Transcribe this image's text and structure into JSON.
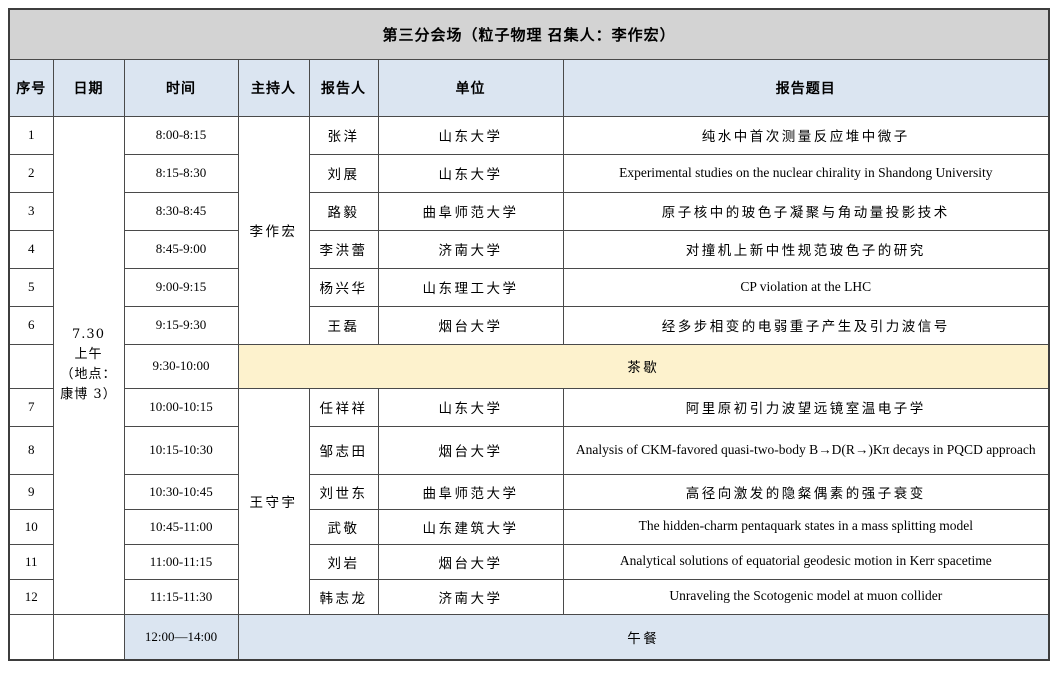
{
  "header": {
    "title": "第三分会场（粒子物理 召集人：李作宏）"
  },
  "columns": [
    "序号",
    "日期",
    "时间",
    "主持人",
    "报告人",
    "单位",
    "报告题目"
  ],
  "date_cell": {
    "lines": [
      "7.30",
      "上午",
      "（地点：康博 3）"
    ]
  },
  "session1": {
    "chair": "李作宏",
    "rows": [
      {
        "no": "1",
        "time": "8:00-8:15",
        "speaker": "张洋",
        "affiliation": "山东大学",
        "title": "纯水中首次测量反应堆中微子"
      },
      {
        "no": "2",
        "time": "8:15-8:30",
        "speaker": "刘展",
        "affiliation": "山东大学",
        "title": "Experimental studies on the nuclear chirality in Shandong University"
      },
      {
        "no": "3",
        "time": "8:30-8:45",
        "speaker": "路毅",
        "affiliation": "曲阜师范大学",
        "title": "原子核中的玻色子凝聚与角动量投影技术"
      },
      {
        "no": "4",
        "time": "8:45-9:00",
        "speaker": "李洪蕾",
        "affiliation": "济南大学",
        "title": "对撞机上新中性规范玻色子的研究"
      },
      {
        "no": "5",
        "time": "9:00-9:15",
        "speaker": "杨兴华",
        "affiliation": "山东理工大学",
        "title": "CP violation at the LHC"
      },
      {
        "no": "6",
        "time": "9:15-9:30",
        "speaker": "王磊",
        "affiliation": "烟台大学",
        "title": "经多步相变的电弱重子产生及引力波信号"
      }
    ]
  },
  "tea_break": {
    "time": "9:30-10:00",
    "label": "茶歇"
  },
  "session2": {
    "chair": "王守宇",
    "rows": [
      {
        "no": "7",
        "time": "10:00-10:15",
        "speaker": "任祥祥",
        "affiliation": "山东大学",
        "title": "阿里原初引力波望远镜室温电子学"
      },
      {
        "no": "8",
        "time": "10:15-10:30",
        "speaker": "邹志田",
        "affiliation": "烟台大学",
        "title": "Analysis of CKM-favored quasi-two-body B→D(R→)Kπ decays in PQCD approach"
      },
      {
        "no": "9",
        "time": "10:30-10:45",
        "speaker": "刘世东",
        "affiliation": "曲阜师范大学",
        "title": "高径向激发的隐粲偶素的强子衰变"
      },
      {
        "no": "10",
        "time": "10:45-11:00",
        "speaker": "武敬",
        "affiliation": "山东建筑大学",
        "title": "The hidden-charm pentaquark states in a mass splitting model"
      },
      {
        "no": "11",
        "time": "11:00-11:15",
        "speaker": "刘岩",
        "affiliation": "烟台大学",
        "title": "Analytical solutions of equatorial geodesic motion in Kerr spacetime"
      },
      {
        "no": "12",
        "time": "11:15-11:30",
        "speaker": "韩志龙",
        "affiliation": "济南大学",
        "title": "Unraveling the Scotogenic model at muon collider"
      }
    ]
  },
  "lunch": {
    "time": "12:00—14:00",
    "label": "午餐"
  },
  "colors": {
    "title_bg": "#d3d3d3",
    "header_bg": "#dbe5f1",
    "tea_bg": "#fdf2cd",
    "lunch_bg": "#dbe5f1",
    "border": "#4a4a4a"
  }
}
